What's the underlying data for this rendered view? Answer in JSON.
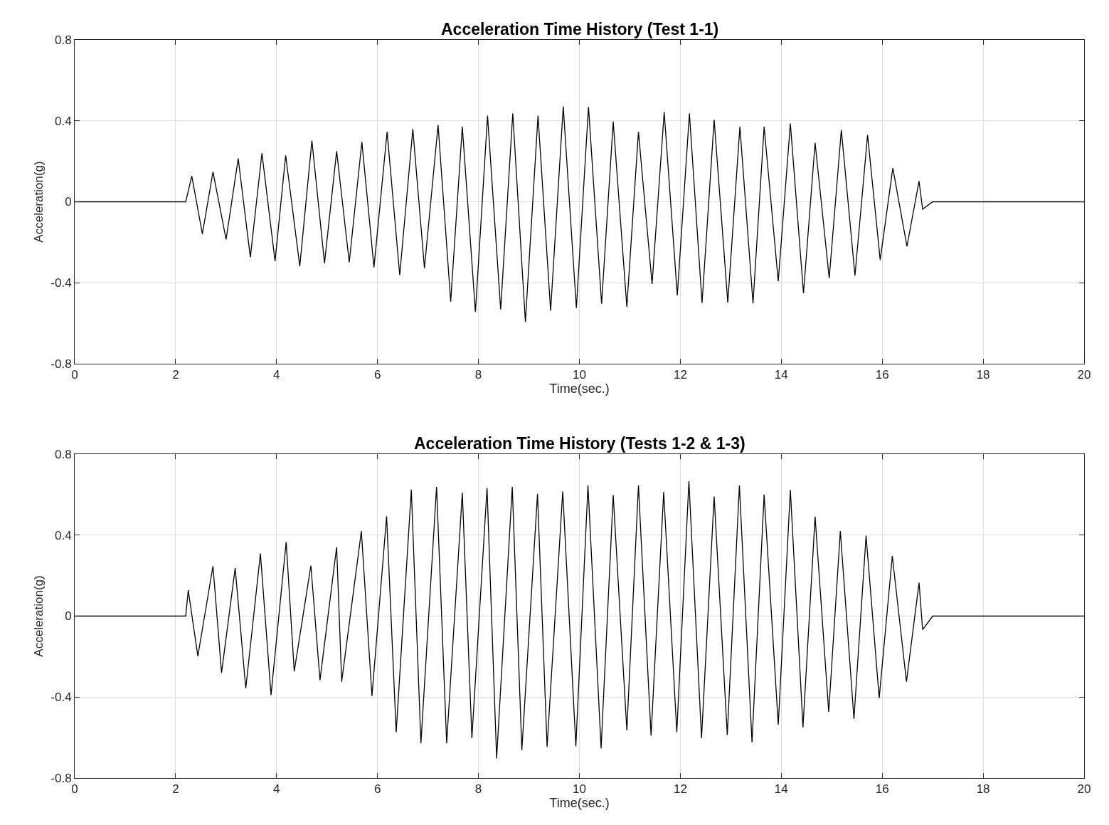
{
  "chart_data": [
    {
      "type": "line",
      "title": "Acceleration Time History (Test 1-1)",
      "xlabel": "Time(sec.)",
      "ylabel": "Acceleration(g)",
      "xlim": [
        0,
        20
      ],
      "xticks": [
        0,
        2,
        4,
        6,
        8,
        10,
        12,
        14,
        16,
        18,
        20
      ],
      "ylim": [
        -0.8,
        0.8
      ],
      "yticks": [
        -0.8,
        -0.4,
        0,
        0.4,
        0.8
      ],
      "grid": true,
      "line_style": "solid",
      "series": [
        {
          "color": "#000000",
          "x": [
            0,
            2.2,
            2.32,
            2.53,
            2.74,
            3.0,
            3.24,
            3.48,
            3.71,
            3.97,
            4.18,
            4.46,
            4.7,
            4.95,
            5.19,
            5.44,
            5.69,
            5.93,
            6.19,
            6.44,
            6.7,
            6.93,
            7.2,
            7.45,
            7.68,
            7.94,
            8.18,
            8.44,
            8.68,
            8.93,
            9.18,
            9.43,
            9.68,
            9.94,
            10.18,
            10.44,
            10.67,
            10.94,
            11.17,
            11.44,
            11.68,
            11.94,
            12.18,
            12.43,
            12.67,
            12.94,
            13.18,
            13.44,
            13.66,
            13.94,
            14.18,
            14.44,
            14.67,
            14.95,
            15.19,
            15.46,
            15.71,
            15.96,
            16.21,
            16.49,
            16.73,
            16.8,
            17.0,
            20
          ],
          "values": [
            0,
            0,
            0.127,
            -0.159,
            0.148,
            -0.186,
            0.214,
            -0.274,
            0.24,
            -0.293,
            0.229,
            -0.318,
            0.302,
            -0.303,
            0.25,
            -0.299,
            0.296,
            -0.324,
            0.346,
            -0.362,
            0.359,
            -0.328,
            0.38,
            -0.493,
            0.371,
            -0.544,
            0.425,
            -0.532,
            0.437,
            -0.594,
            0.425,
            -0.538,
            0.471,
            -0.525,
            0.468,
            -0.504,
            0.396,
            -0.519,
            0.346,
            -0.406,
            0.443,
            -0.462,
            0.437,
            -0.5,
            0.405,
            -0.498,
            0.371,
            -0.502,
            0.371,
            -0.393,
            0.387,
            -0.452,
            0.292,
            -0.377,
            0.355,
            -0.365,
            0.33,
            -0.287,
            0.167,
            -0.22,
            0.102,
            -0.036,
            0,
            0
          ]
        }
      ]
    },
    {
      "type": "line",
      "title": "Acceleration Time History (Tests 1-2 & 1-3)",
      "xlabel": "Time(sec.)",
      "ylabel": "Acceleration(g)",
      "xlim": [
        0,
        20
      ],
      "xticks": [
        0,
        2,
        4,
        6,
        8,
        10,
        12,
        14,
        16,
        18,
        20
      ],
      "ylim": [
        -0.8,
        0.8
      ],
      "yticks": [
        -0.8,
        -0.4,
        0,
        0.4,
        0.8
      ],
      "grid": true,
      "line_style": "solid",
      "series": [
        {
          "color": "#000000",
          "x": [
            0,
            2.2,
            2.25,
            2.44,
            2.74,
            2.91,
            3.18,
            3.39,
            3.68,
            3.89,
            4.19,
            4.35,
            4.68,
            4.86,
            5.19,
            5.29,
            5.68,
            5.89,
            6.18,
            6.37,
            6.67,
            6.86,
            7.17,
            7.37,
            7.68,
            7.87,
            8.17,
            8.36,
            8.67,
            8.86,
            9.17,
            9.36,
            9.67,
            9.93,
            10.17,
            10.43,
            10.67,
            10.94,
            11.17,
            11.42,
            11.67,
            11.93,
            12.17,
            12.42,
            12.67,
            12.93,
            13.17,
            13.42,
            13.66,
            13.94,
            14.18,
            14.43,
            14.67,
            14.94,
            15.17,
            15.44,
            15.68,
            15.94,
            16.2,
            16.48,
            16.73,
            16.8,
            17.0,
            20
          ],
          "values": [
            0,
            0,
            0.128,
            -0.198,
            0.247,
            -0.28,
            0.237,
            -0.357,
            0.309,
            -0.39,
            0.366,
            -0.273,
            0.249,
            -0.317,
            0.341,
            -0.324,
            0.42,
            -0.395,
            0.493,
            -0.574,
            0.625,
            -0.628,
            0.638,
            -0.628,
            0.61,
            -0.603,
            0.633,
            -0.703,
            0.638,
            -0.662,
            0.604,
            -0.646,
            0.616,
            -0.643,
            0.645,
            -0.653,
            0.598,
            -0.565,
            0.645,
            -0.591,
            0.613,
            -0.574,
            0.666,
            -0.603,
            0.591,
            -0.587,
            0.645,
            -0.624,
            0.6,
            -0.537,
            0.623,
            -0.549,
            0.491,
            -0.474,
            0.42,
            -0.508,
            0.397,
            -0.405,
            0.297,
            -0.324,
            0.165,
            -0.067,
            0,
            0
          ]
        }
      ]
    }
  ]
}
